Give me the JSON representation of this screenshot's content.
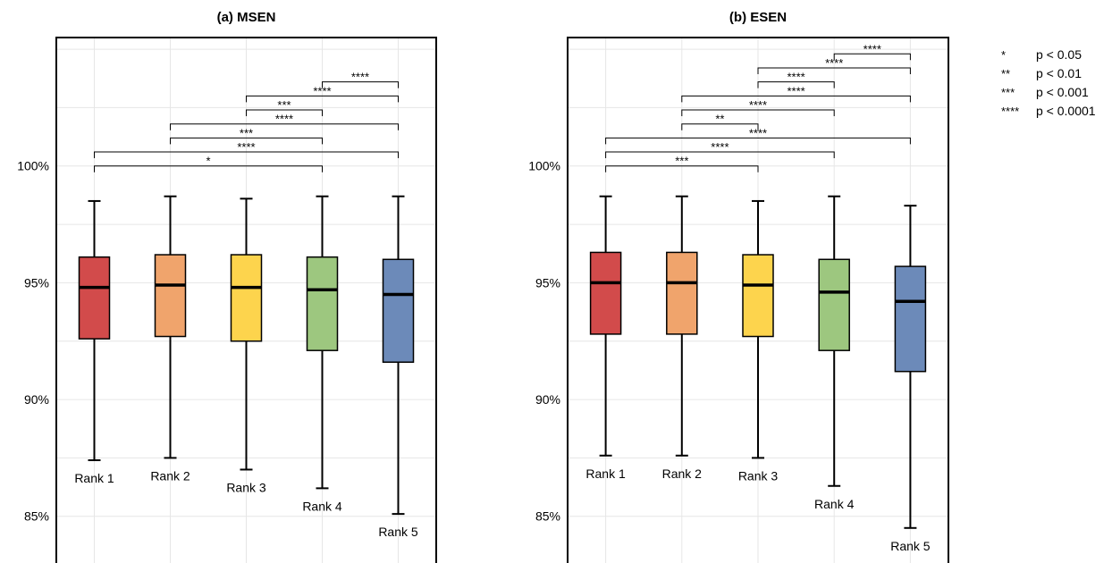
{
  "chart_data": [
    {
      "type": "boxplot",
      "title": "(a) MSEN",
      "xlabel": "",
      "ylabel": "",
      "ylim": [
        83,
        105.5
      ],
      "yticks": [
        85,
        90,
        95,
        100
      ],
      "ytick_labels": [
        "85%",
        "90%",
        "95%",
        "100%"
      ],
      "grid": true,
      "categories": [
        "Rank 1",
        "Rank 2",
        "Rank 3",
        "Rank 4",
        "Rank 5"
      ],
      "colors": [
        "#d24b4b",
        "#f0a46c",
        "#fdd44d",
        "#9dc77f",
        "#6c8ab9"
      ],
      "boxes": [
        {
          "whisker_low": 87.4,
          "q1": 92.6,
          "median": 94.8,
          "q3": 96.1,
          "whisker_high": 98.5
        },
        {
          "whisker_low": 87.5,
          "q1": 92.7,
          "median": 94.9,
          "q3": 96.2,
          "whisker_high": 98.7
        },
        {
          "whisker_low": 87.0,
          "q1": 92.5,
          "median": 94.8,
          "q3": 96.2,
          "whisker_high": 98.6
        },
        {
          "whisker_low": 86.2,
          "q1": 92.1,
          "median": 94.7,
          "q3": 96.1,
          "whisker_high": 98.7
        },
        {
          "whisker_low": 85.1,
          "q1": 91.6,
          "median": 94.5,
          "q3": 96.0,
          "whisker_high": 98.7
        }
      ],
      "significance": [
        {
          "from": 1,
          "to": 4,
          "label": "*",
          "y": 100.0
        },
        {
          "from": 1,
          "to": 5,
          "label": "****",
          "y": 100.6
        },
        {
          "from": 2,
          "to": 4,
          "label": "***",
          "y": 101.2
        },
        {
          "from": 2,
          "to": 5,
          "label": "****",
          "y": 101.8
        },
        {
          "from": 3,
          "to": 4,
          "label": "***",
          "y": 102.4
        },
        {
          "from": 3,
          "to": 5,
          "label": "****",
          "y": 103.0
        },
        {
          "from": 4,
          "to": 5,
          "label": "****",
          "y": 103.6
        }
      ]
    },
    {
      "type": "boxplot",
      "title": "(b) ESEN",
      "xlabel": "",
      "ylabel": "",
      "ylim": [
        83,
        105.5
      ],
      "yticks": [
        85,
        90,
        95,
        100
      ],
      "ytick_labels": [
        "85%",
        "90%",
        "95%",
        "100%"
      ],
      "grid": true,
      "categories": [
        "Rank 1",
        "Rank 2",
        "Rank 3",
        "Rank 4",
        "Rank 5"
      ],
      "colors": [
        "#d24b4b",
        "#f0a46c",
        "#fdd44d",
        "#9dc77f",
        "#6c8ab9"
      ],
      "boxes": [
        {
          "whisker_low": 87.6,
          "q1": 92.8,
          "median": 95.0,
          "q3": 96.3,
          "whisker_high": 98.7
        },
        {
          "whisker_low": 87.6,
          "q1": 92.8,
          "median": 95.0,
          "q3": 96.3,
          "whisker_high": 98.7
        },
        {
          "whisker_low": 87.5,
          "q1": 92.7,
          "median": 94.9,
          "q3": 96.2,
          "whisker_high": 98.5
        },
        {
          "whisker_low": 86.3,
          "q1": 92.1,
          "median": 94.6,
          "q3": 96.0,
          "whisker_high": 98.7
        },
        {
          "whisker_low": 84.5,
          "q1": 91.2,
          "median": 94.2,
          "q3": 95.7,
          "whisker_high": 98.3
        }
      ],
      "significance": [
        {
          "from": 1,
          "to": 3,
          "label": "***",
          "y": 100.0
        },
        {
          "from": 1,
          "to": 4,
          "label": "****",
          "y": 100.6
        },
        {
          "from": 1,
          "to": 5,
          "label": "****",
          "y": 101.2
        },
        {
          "from": 2,
          "to": 3,
          "label": "**",
          "y": 101.8
        },
        {
          "from": 2,
          "to": 4,
          "label": "****",
          "y": 102.4
        },
        {
          "from": 2,
          "to": 5,
          "label": "****",
          "y": 103.0
        },
        {
          "from": 3,
          "to": 4,
          "label": "****",
          "y": 103.6
        },
        {
          "from": 3,
          "to": 5,
          "label": "****",
          "y": 104.2
        },
        {
          "from": 4,
          "to": 5,
          "label": "****",
          "y": 104.8
        }
      ]
    }
  ],
  "legend": {
    "placement": "top-right",
    "items": [
      {
        "symbol": "*",
        "text": "p < 0.05"
      },
      {
        "symbol": "**",
        "text": "p < 0.01"
      },
      {
        "symbol": "***",
        "text": "p < 0.001"
      },
      {
        "symbol": "****",
        "text": "p < 0.0001"
      }
    ]
  }
}
